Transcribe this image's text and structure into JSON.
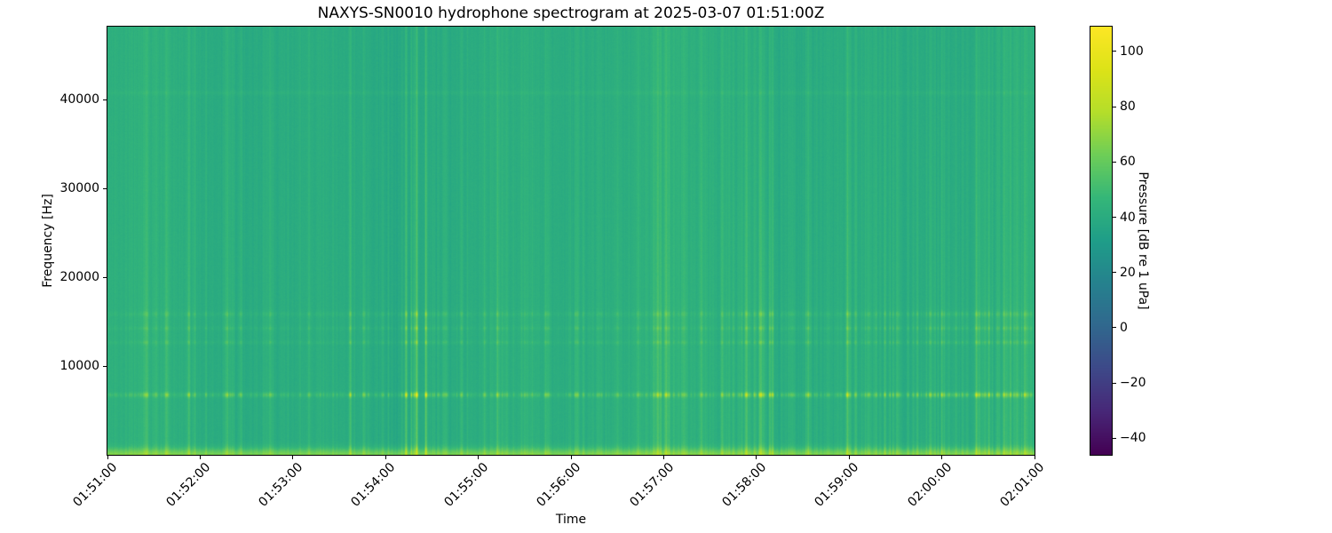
{
  "chart": {
    "title": "NAXYS-SN0010 hydrophone spectrogram at 2025-03-07 01:51:00Z",
    "xlabel": "Time",
    "ylabel": "Frequency [Hz]",
    "colorbar_label": "Pressure [dB re 1 uPa]"
  },
  "chart_data": {
    "type": "heatmap",
    "subtype": "spectrogram",
    "colormap": "viridis",
    "title": "NAXYS-SN0010 hydrophone spectrogram at 2025-03-07 01:51:00Z",
    "xlabel": "Time",
    "ylabel": "Frequency [Hz]",
    "colorbar_label": "Pressure [dB re 1 uPa]",
    "start_time_utc": "2025-03-07 01:51:00Z",
    "time_span_s": 600,
    "x_ticks": [
      "01:51:00",
      "01:52:00",
      "01:53:00",
      "01:54:00",
      "01:55:00",
      "01:56:00",
      "01:57:00",
      "01:58:00",
      "01:59:00",
      "02:00:00",
      "02:01:00"
    ],
    "freq_range_hz": [
      0,
      48200
    ],
    "y_ticks_hz": [
      10000,
      20000,
      30000,
      40000
    ],
    "y_tick_labels": [
      "10000",
      "20000",
      "30000",
      "40000"
    ],
    "value_range_db": [
      -46,
      109
    ],
    "colorbar_ticks_db": [
      100,
      80,
      60,
      40,
      20,
      0,
      -20,
      -40
    ],
    "colorbar_tick_labels": [
      "100",
      "80",
      "60",
      "40",
      "20",
      "0",
      "−20",
      "−40"
    ],
    "grid": false,
    "legend": false,
    "background_level_db": 39.5,
    "spectrogram_model": {
      "low_freq_boost": {
        "amp_db": 24,
        "sigma_hz": 750
      },
      "bands": [
        {
          "center_hz": 6800,
          "sigma_hz": 280,
          "stripe_gain": 1.25,
          "floor_db": 2.8
        },
        {
          "center_hz": 12700,
          "sigma_hz": 220,
          "stripe_gain": 0.38,
          "floor_db": 1.2
        },
        {
          "center_hz": 14300,
          "sigma_hz": 220,
          "stripe_gain": 0.34,
          "floor_db": 1.0
        },
        {
          "center_hz": 15900,
          "sigma_hz": 300,
          "stripe_gain": 0.42,
          "floor_db": 1.2
        },
        {
          "center_hz": 14500,
          "sigma_hz": 1800,
          "stripe_gain": 0.18,
          "floor_db": 0.0
        },
        {
          "center_hz": 600,
          "sigma_hz": 500,
          "stripe_gain": 0.25,
          "floor_db": 0.0
        },
        {
          "center_hz": 40800,
          "sigma_hz": 260,
          "stripe_gain": 0.05,
          "floor_db": 2.0
        }
      ],
      "broadband_events": [
        {
          "t_s": 24,
          "db": 12
        },
        {
          "t_s": 38,
          "db": 8
        },
        {
          "t_s": 52,
          "db": 10
        },
        {
          "t_s": 77,
          "db": 16
        },
        {
          "t_s": 86,
          "db": 14
        },
        {
          "t_s": 105,
          "db": 12
        },
        {
          "t_s": 130,
          "db": 8
        },
        {
          "t_s": 157,
          "db": 16
        },
        {
          "t_s": 166,
          "db": 15
        },
        {
          "t_s": 178,
          "db": 10
        },
        {
          "t_s": 193,
          "db": 22
        },
        {
          "t_s": 200,
          "db": 26
        },
        {
          "t_s": 206,
          "db": 18
        },
        {
          "t_s": 218,
          "db": 10
        },
        {
          "t_s": 229,
          "db": 13
        },
        {
          "t_s": 244,
          "db": 12
        },
        {
          "t_s": 252,
          "db": 13
        },
        {
          "t_s": 270,
          "db": 9
        },
        {
          "t_s": 285,
          "db": 8
        },
        {
          "t_s": 304,
          "db": 16
        },
        {
          "t_s": 318,
          "db": 9
        },
        {
          "t_s": 330,
          "db": 8
        },
        {
          "t_s": 343,
          "db": 9
        },
        {
          "t_s": 356,
          "db": 22
        },
        {
          "t_s": 361,
          "db": 17
        },
        {
          "t_s": 372,
          "db": 9
        },
        {
          "t_s": 384,
          "db": 13
        },
        {
          "t_s": 398,
          "db": 9
        },
        {
          "t_s": 413,
          "db": 19
        },
        {
          "t_s": 422,
          "db": 24
        },
        {
          "t_s": 430,
          "db": 16
        },
        {
          "t_s": 443,
          "db": 10
        },
        {
          "t_s": 453,
          "db": 15
        },
        {
          "t_s": 466,
          "db": 9
        },
        {
          "t_s": 479,
          "db": 14
        },
        {
          "t_s": 492,
          "db": 10
        },
        {
          "t_s": 503,
          "db": 9
        },
        {
          "t_s": 511,
          "db": 13
        },
        {
          "t_s": 524,
          "db": 9
        },
        {
          "t_s": 532,
          "db": 10
        },
        {
          "t_s": 540,
          "db": 14
        },
        {
          "t_s": 549,
          "db": 9
        },
        {
          "t_s": 556,
          "db": 10
        },
        {
          "t_s": 562,
          "db": 16
        },
        {
          "t_s": 570,
          "db": 11
        },
        {
          "t_s": 580,
          "db": 18
        },
        {
          "t_s": 587,
          "db": 12
        },
        {
          "t_s": 594,
          "db": 15
        }
      ],
      "activity_windows_s": [
        [
          0,
          80,
          1.3
        ],
        [
          180,
          215,
          1.5
        ],
        [
          250,
          290,
          1.2
        ],
        [
          340,
          370,
          1.3
        ],
        [
          400,
          440,
          1.5
        ],
        [
          460,
          600,
          1.4
        ]
      ]
    },
    "colors": {
      "viridis_anchors": [
        "#440154",
        "#482878",
        "#3e4989",
        "#31688e",
        "#26828e",
        "#1f9e89",
        "#35b779",
        "#6ece58",
        "#b5de2b",
        "#dde318",
        "#fde725"
      ],
      "axes_edge": "#000000",
      "text": "#000000",
      "figure_background": "#ffffff"
    }
  }
}
